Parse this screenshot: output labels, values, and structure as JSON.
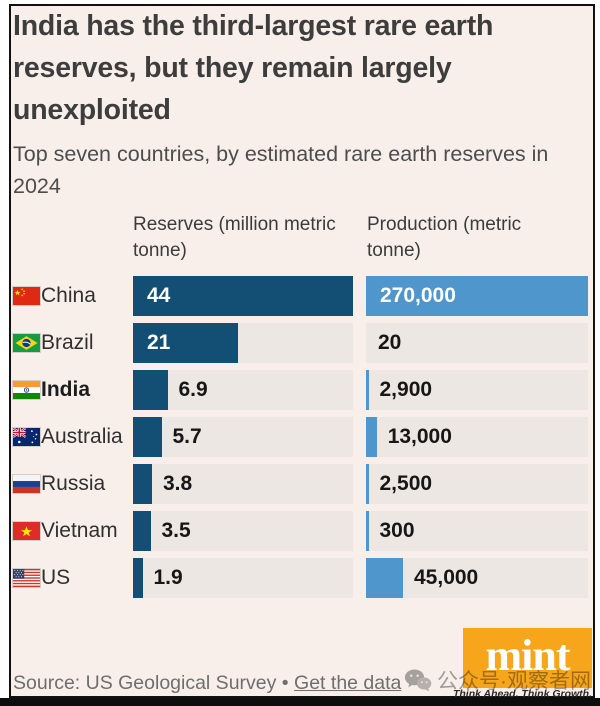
{
  "header": {
    "title": "India has the third-largest rare earth reserves, but they remain largely unexploited",
    "subtitle": "Top seven countries, by estimated rare earth reserves in 2024"
  },
  "columns": {
    "reserves": "Reserves (million metric tonne)",
    "production": "Production (metric tonne)"
  },
  "rows": [
    {
      "country": "China",
      "flag": "cn",
      "bold": false,
      "reserves": {
        "value": 44,
        "label": "44",
        "inside": true
      },
      "production": {
        "value": 270000,
        "label": "270,000",
        "inside": true
      }
    },
    {
      "country": "Brazil",
      "flag": "br",
      "bold": false,
      "reserves": {
        "value": 21,
        "label": "21",
        "inside": true
      },
      "production": {
        "value": 20,
        "label": "20",
        "inside": false
      }
    },
    {
      "country": "India",
      "flag": "in",
      "bold": true,
      "reserves": {
        "value": 6.9,
        "label": "6.9",
        "inside": false
      },
      "production": {
        "value": 2900,
        "label": "2,900",
        "inside": false
      }
    },
    {
      "country": "Australia",
      "flag": "au",
      "bold": false,
      "reserves": {
        "value": 5.7,
        "label": "5.7",
        "inside": false
      },
      "production": {
        "value": 13000,
        "label": "13,000",
        "inside": false
      }
    },
    {
      "country": "Russia",
      "flag": "ru",
      "bold": false,
      "reserves": {
        "value": 3.8,
        "label": "3.8",
        "inside": false
      },
      "production": {
        "value": 2500,
        "label": "2,500",
        "inside": false
      }
    },
    {
      "country": "Vietnam",
      "flag": "vn",
      "bold": false,
      "reserves": {
        "value": 3.5,
        "label": "3.5",
        "inside": false
      },
      "production": {
        "value": 300,
        "label": "300",
        "inside": false
      }
    },
    {
      "country": "US",
      "flag": "us",
      "bold": false,
      "reserves": {
        "value": 1.9,
        "label": "1.9",
        "inside": false
      },
      "production": {
        "value": 45000,
        "label": "45,000",
        "inside": false
      }
    }
  ],
  "footer": {
    "source": "Source: US Geological Survey",
    "separator": "•",
    "link": "Get the data"
  },
  "branding": {
    "logo": "mint",
    "tagline": "Think Ahead. Think Growth."
  },
  "watermark": {
    "icon": "wechat-icon",
    "text": "公众号·观察者网"
  },
  "colors": {
    "background": "#f8efeb",
    "track": "#ece7e3",
    "reserves_bar": "#134f74",
    "production_bar": "#4f96cc",
    "logo_orange": "#f7a51b"
  },
  "chart_data": {
    "type": "bar",
    "title": "India has the third-largest rare earth reserves, but they remain largely unexploited",
    "subtitle": "Top seven countries, by estimated rare earth reserves in 2024",
    "categories": [
      "China",
      "Brazil",
      "India",
      "Australia",
      "Russia",
      "Vietnam",
      "US"
    ],
    "series": [
      {
        "name": "Reserves (million metric tonne)",
        "values": [
          44,
          21,
          6.9,
          5.7,
          3.8,
          3.5,
          1.9
        ]
      },
      {
        "name": "Production (metric tonne)",
        "values": [
          270000,
          20,
          2900,
          13000,
          2500,
          300,
          45000
        ]
      }
    ],
    "reserves_max": 44,
    "production_max": 270000,
    "orientation": "horizontal",
    "grid": false,
    "legend_position": "column-headers",
    "source": "Source: US Geological Survey • Get the data"
  }
}
